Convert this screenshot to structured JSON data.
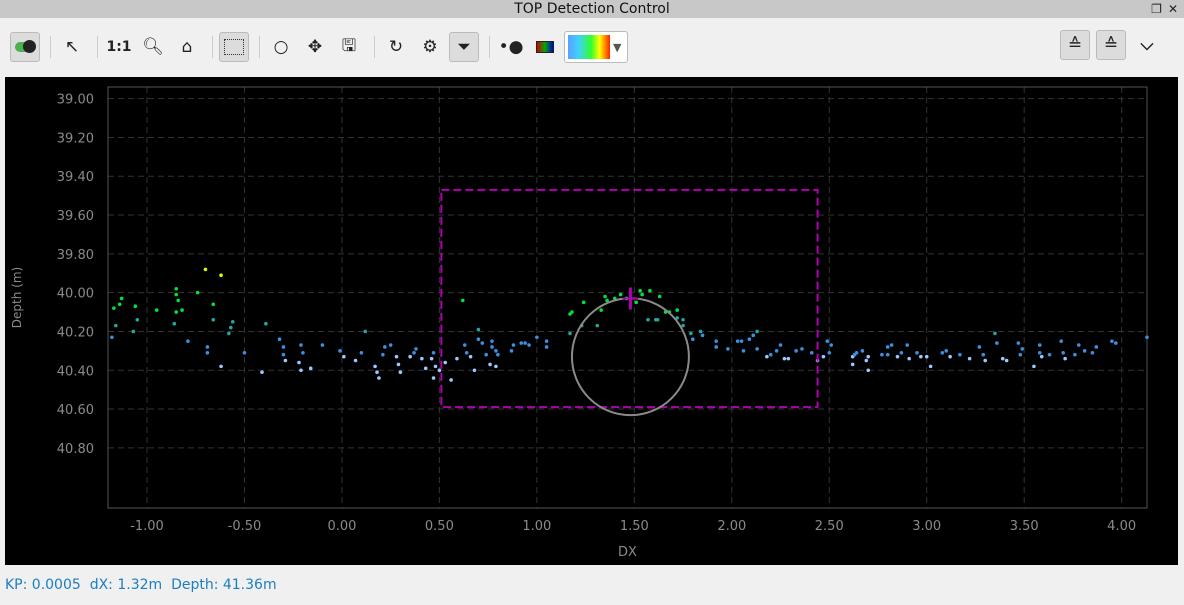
{
  "window": {
    "title": "TOP Detection Control",
    "restore_icon": "restore-icon",
    "close_icon": "close-icon"
  },
  "toolbar": {
    "one_to_one_label": "1:1",
    "icons": [
      "toggle-icon",
      "pointer-icon",
      "zoom-icon",
      "home-icon",
      "select-region-icon",
      "ring-icon",
      "move-icon",
      "save-icon",
      "refresh-icon",
      "settings-icon",
      "filter-icon",
      "point-style-icon",
      "color-icon",
      "colormap-dropdown",
      "sonar-up-icon",
      "sonar-down-icon",
      "chevron-down-icon"
    ]
  },
  "status": {
    "kp": "KP: 0.0005",
    "dx": "dX: 1.32m",
    "depth": "Depth: 41.36m"
  },
  "chart_data": {
    "type": "scatter",
    "xlabel": "DX",
    "ylabel": "Depth (m)",
    "xlim": [
      -1.2,
      4.13
    ],
    "ylim": [
      38.94,
      41.11
    ],
    "y_inverted": true,
    "grid": true,
    "xticks": [
      "-1.00",
      "-0.50",
      "0.00",
      "0.50",
      "1.00",
      "1.50",
      "2.00",
      "2.50",
      "3.00",
      "3.50",
      "4.00"
    ],
    "yticks": [
      "39.00",
      "39.20",
      "39.40",
      "39.60",
      "39.80",
      "40.00",
      "40.20",
      "40.40",
      "40.60",
      "40.80"
    ],
    "colors": {
      "shallow": "#c8ff00",
      "mid": "#00e040",
      "teal": "#20a8a0",
      "deep": "#3a90e0",
      "deepest": "#9cc8ff",
      "overlay": "#b000b0",
      "circle": "#8a8a8a"
    },
    "selection_box": {
      "x": [
        0.51,
        2.44
      ],
      "depth": [
        39.47,
        40.59
      ]
    },
    "circle": {
      "x": 1.48,
      "depth": 40.33,
      "radius": 0.3
    },
    "marker": {
      "x": 1.48,
      "depth": 40.03
    },
    "points": [
      [
        -1.18,
        40.23
      ],
      [
        -1.17,
        40.08
      ],
      [
        -1.16,
        40.17
      ],
      [
        -1.13,
        40.03
      ],
      [
        -1.14,
        40.06
      ],
      [
        -1.07,
        40.2
      ],
      [
        -1.06,
        40.07
      ],
      [
        -1.05,
        40.14
      ],
      [
        -0.95,
        40.09
      ],
      [
        -0.85,
        39.98
      ],
      [
        -0.85,
        40.01
      ],
      [
        -0.85,
        40.1
      ],
      [
        -0.84,
        40.04
      ],
      [
        -0.82,
        40.09
      ],
      [
        -0.86,
        40.16
      ],
      [
        -0.79,
        40.25
      ],
      [
        -0.74,
        40.0
      ],
      [
        -0.7,
        39.88
      ],
      [
        -0.69,
        40.28
      ],
      [
        -0.69,
        40.31
      ],
      [
        -0.66,
        40.06
      ],
      [
        -0.66,
        40.14
      ],
      [
        -0.62,
        39.91
      ],
      [
        -0.62,
        40.38
      ],
      [
        -0.58,
        40.21
      ],
      [
        -0.57,
        40.18
      ],
      [
        -0.56,
        40.15
      ],
      [
        -0.5,
        40.31
      ],
      [
        -0.39,
        40.16
      ],
      [
        -0.41,
        40.41
      ],
      [
        -0.32,
        40.24
      ],
      [
        -0.3,
        40.28
      ],
      [
        -0.3,
        40.32
      ],
      [
        -0.29,
        40.35
      ],
      [
        -0.21,
        40.27
      ],
      [
        -0.2,
        40.31
      ],
      [
        -0.22,
        40.36
      ],
      [
        -0.21,
        40.4
      ],
      [
        -0.16,
        40.39
      ],
      [
        -0.1,
        40.27
      ],
      [
        -0.01,
        40.3
      ],
      [
        0.01,
        40.33
      ],
      [
        0.07,
        40.35
      ],
      [
        0.1,
        40.31
      ],
      [
        0.12,
        40.2
      ],
      [
        0.17,
        40.38
      ],
      [
        0.18,
        40.41
      ],
      [
        0.19,
        40.44
      ],
      [
        0.21,
        40.32
      ],
      [
        0.22,
        40.28
      ],
      [
        0.25,
        40.27
      ],
      [
        0.28,
        40.33
      ],
      [
        0.29,
        40.37
      ],
      [
        0.3,
        40.41
      ],
      [
        0.35,
        40.33
      ],
      [
        0.37,
        40.31
      ],
      [
        0.38,
        40.29
      ],
      [
        0.41,
        40.34
      ],
      [
        0.43,
        40.39
      ],
      [
        0.46,
        40.34
      ],
      [
        0.47,
        40.31
      ],
      [
        0.48,
        40.38
      ],
      [
        0.47,
        40.44
      ],
      [
        0.5,
        40.4
      ],
      [
        0.56,
        40.45
      ],
      [
        0.53,
        40.36
      ],
      [
        0.59,
        40.34
      ],
      [
        0.62,
        40.04
      ],
      [
        0.63,
        40.27
      ],
      [
        0.64,
        40.31
      ],
      [
        0.66,
        40.33
      ],
      [
        0.68,
        40.4
      ],
      [
        0.7,
        40.19
      ],
      [
        0.7,
        40.24
      ],
      [
        0.72,
        40.26
      ],
      [
        0.77,
        40.25
      ],
      [
        0.77,
        40.28
      ],
      [
        0.79,
        40.3
      ],
      [
        0.74,
        40.32
      ],
      [
        0.8,
        40.32
      ],
      [
        0.79,
        40.38
      ],
      [
        0.76,
        40.37
      ],
      [
        0.88,
        40.27
      ],
      [
        0.87,
        40.3
      ],
      [
        0.92,
        40.26
      ],
      [
        0.94,
        40.26
      ],
      [
        0.96,
        40.27
      ],
      [
        1.0,
        40.23
      ],
      [
        1.05,
        40.25
      ],
      [
        1.05,
        40.28
      ],
      [
        1.17,
        40.21
      ],
      [
        1.17,
        40.11
      ],
      [
        1.18,
        40.1
      ],
      [
        1.23,
        40.17
      ],
      [
        1.24,
        40.05
      ],
      [
        1.31,
        40.17
      ],
      [
        1.33,
        40.09
      ],
      [
        1.35,
        40.02
      ],
      [
        1.36,
        40.04
      ],
      [
        1.4,
        40.03
      ],
      [
        1.43,
        40.01
      ],
      [
        1.46,
        40.03
      ],
      [
        1.51,
        40.05
      ],
      [
        1.53,
        39.99
      ],
      [
        1.54,
        40.01
      ],
      [
        1.58,
        39.99
      ],
      [
        1.63,
        40.02
      ],
      [
        1.57,
        40.14
      ],
      [
        1.61,
        40.14
      ],
      [
        1.62,
        40.14
      ],
      [
        1.66,
        40.1
      ],
      [
        1.68,
        40.1
      ],
      [
        1.72,
        40.09
      ],
      [
        1.72,
        40.13
      ],
      [
        1.75,
        40.14
      ],
      [
        1.75,
        40.17
      ],
      [
        1.79,
        40.21
      ],
      [
        1.8,
        40.24
      ],
      [
        1.84,
        40.2
      ],
      [
        1.85,
        40.22
      ],
      [
        1.92,
        40.25
      ],
      [
        1.92,
        40.28
      ],
      [
        1.98,
        40.29
      ],
      [
        2.03,
        40.25
      ],
      [
        2.05,
        40.25
      ],
      [
        2.06,
        40.3
      ],
      [
        2.09,
        40.24
      ],
      [
        2.11,
        40.22
      ],
      [
        2.13,
        40.2
      ],
      [
        2.13,
        40.29
      ],
      [
        2.18,
        40.33
      ],
      [
        2.2,
        40.32
      ],
      [
        2.23,
        40.3
      ],
      [
        2.25,
        40.27
      ],
      [
        2.27,
        40.34
      ],
      [
        2.29,
        40.34
      ],
      [
        2.33,
        40.3
      ],
      [
        2.36,
        40.29
      ],
      [
        2.41,
        40.31
      ],
      [
        2.44,
        40.35
      ],
      [
        2.47,
        40.33
      ],
      [
        2.49,
        40.25
      ],
      [
        2.51,
        40.27
      ],
      [
        2.5,
        40.31
      ],
      [
        2.62,
        40.33
      ],
      [
        2.63,
        40.32
      ],
      [
        2.62,
        40.37
      ],
      [
        2.64,
        40.31
      ],
      [
        2.67,
        40.3
      ],
      [
        2.69,
        40.35
      ],
      [
        2.7,
        40.4
      ],
      [
        2.7,
        40.33
      ],
      [
        2.77,
        40.32
      ],
      [
        2.8,
        40.28
      ],
      [
        2.8,
        40.32
      ],
      [
        2.82,
        40.27
      ],
      [
        2.85,
        40.33
      ],
      [
        2.87,
        40.31
      ],
      [
        2.9,
        40.27
      ],
      [
        2.91,
        40.34
      ],
      [
        2.95,
        40.31
      ],
      [
        2.97,
        40.33
      ],
      [
        3.0,
        40.33
      ],
      [
        3.02,
        40.38
      ],
      [
        3.08,
        40.31
      ],
      [
        3.1,
        40.3
      ],
      [
        3.12,
        40.33
      ],
      [
        3.17,
        40.32
      ],
      [
        3.22,
        40.34
      ],
      [
        3.27,
        40.28
      ],
      [
        3.29,
        40.32
      ],
      [
        3.3,
        40.35
      ],
      [
        3.35,
        40.21
      ],
      [
        3.36,
        40.26
      ],
      [
        3.39,
        40.34
      ],
      [
        3.41,
        40.35
      ],
      [
        3.47,
        40.26
      ],
      [
        3.48,
        40.32
      ],
      [
        3.49,
        40.29
      ],
      [
        3.55,
        40.38
      ],
      [
        3.58,
        40.27
      ],
      [
        3.58,
        40.31
      ],
      [
        3.59,
        40.33
      ],
      [
        3.63,
        40.32
      ],
      [
        3.69,
        40.25
      ],
      [
        3.7,
        40.31
      ],
      [
        3.71,
        40.34
      ],
      [
        3.76,
        40.32
      ],
      [
        3.78,
        40.27
      ],
      [
        3.81,
        40.3
      ],
      [
        3.85,
        40.31
      ],
      [
        3.87,
        40.28
      ],
      [
        3.95,
        40.25
      ],
      [
        3.97,
        40.26
      ],
      [
        4.13,
        40.23
      ]
    ]
  }
}
